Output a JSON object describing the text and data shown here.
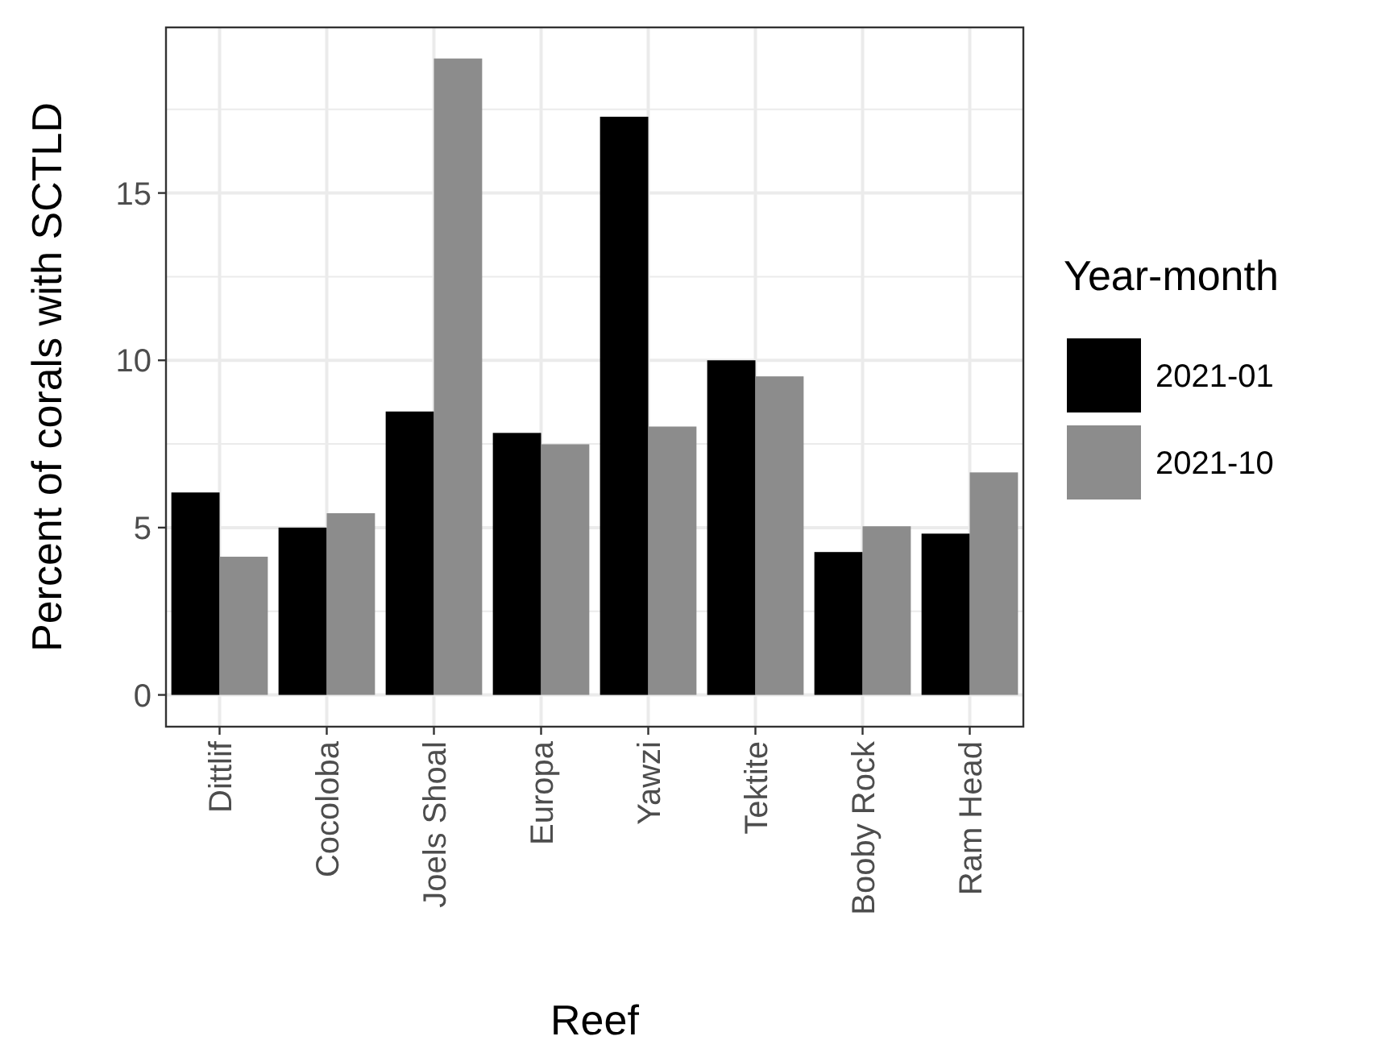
{
  "chart_data": {
    "type": "bar",
    "xlabel": "Reef",
    "ylabel": "Percent of corals with SCTLD",
    "legend_title": "Year-month",
    "categories": [
      "Dittlif",
      "Cocoloba",
      "Joels Shoal",
      "Europa",
      "Yawzi",
      "Tektite",
      "Booby Rock",
      "Ram Head"
    ],
    "series": [
      {
        "name": "2021-01",
        "color": "#000000",
        "values": [
          6.05,
          5.0,
          8.47,
          7.83,
          17.28,
          10.0,
          4.27,
          4.82
        ]
      },
      {
        "name": "2021-10",
        "color": "#8c8c8c",
        "values": [
          4.13,
          5.43,
          19.02,
          7.49,
          8.02,
          9.52,
          5.04,
          6.65
        ]
      }
    ],
    "ylim": [
      -0.95,
      19.95
    ],
    "yticks": [
      0,
      5,
      10,
      15
    ],
    "grid": true,
    "legend": "right"
  }
}
